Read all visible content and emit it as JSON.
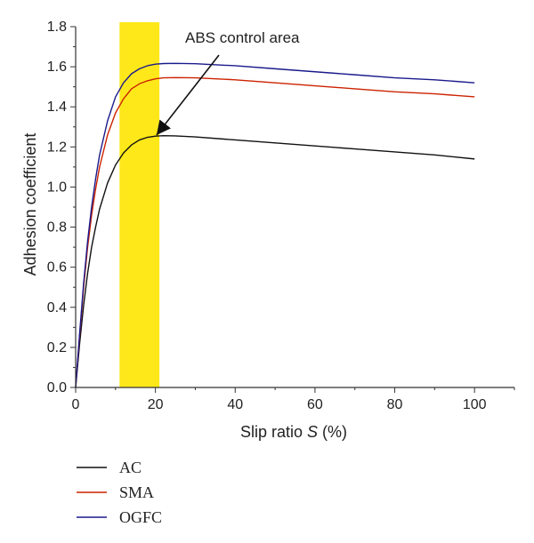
{
  "chart_data": {
    "type": "line",
    "xlabel_prefix": "Slip ratio ",
    "xlabel_var": "S",
    "xlabel_suffix": " (%)",
    "ylabel": "Adhesion coefficient",
    "xlim": [
      0,
      110
    ],
    "ylim": [
      0,
      1.8
    ],
    "xticks": [
      0,
      20,
      40,
      60,
      80,
      100
    ],
    "yticks": [
      0.0,
      0.2,
      0.4,
      0.6,
      0.8,
      1.0,
      1.2,
      1.4,
      1.6,
      1.8
    ],
    "ytick_labels": [
      "0.0",
      "0.2",
      "0.4",
      "0.6",
      "0.8",
      "1.0",
      "1.2",
      "1.4",
      "1.6",
      "1.8"
    ],
    "grid": false,
    "legend_placement": "bottom-left, below plot",
    "shaded_region": {
      "x_start": 11,
      "x_end": 21,
      "color": "#FFE81A"
    },
    "annotation": {
      "text": "ABS control area",
      "points_to": {
        "x": 20.5,
        "y": 1.25
      }
    },
    "series": [
      {
        "name": "AC",
        "color": "#111111",
        "x": [
          0,
          1,
          2,
          3,
          4,
          5,
          6,
          8,
          10,
          12,
          14,
          16,
          18,
          20,
          22,
          25,
          30,
          40,
          50,
          60,
          70,
          80,
          90,
          100
        ],
        "y": [
          0,
          0.22,
          0.41,
          0.57,
          0.7,
          0.8,
          0.89,
          1.02,
          1.11,
          1.17,
          1.21,
          1.235,
          1.248,
          1.254,
          1.256,
          1.255,
          1.25,
          1.235,
          1.22,
          1.205,
          1.19,
          1.175,
          1.16,
          1.14
        ]
      },
      {
        "name": "SMA",
        "color": "#CC2200",
        "x": [
          0,
          1,
          2,
          3,
          4,
          5,
          6,
          8,
          10,
          12,
          14,
          16,
          18,
          20,
          22,
          25,
          30,
          40,
          50,
          60,
          70,
          80,
          90,
          100
        ],
        "y": [
          0,
          0.26,
          0.5,
          0.7,
          0.86,
          0.99,
          1.1,
          1.26,
          1.37,
          1.44,
          1.49,
          1.515,
          1.53,
          1.54,
          1.545,
          1.546,
          1.545,
          1.535,
          1.52,
          1.505,
          1.49,
          1.475,
          1.465,
          1.45
        ]
      },
      {
        "name": "OGFC",
        "color": "#1A1A8C",
        "x": [
          0,
          1,
          2,
          3,
          4,
          5,
          6,
          8,
          10,
          12,
          14,
          16,
          18,
          20,
          22,
          25,
          30,
          40,
          50,
          60,
          70,
          80,
          90,
          100
        ],
        "y": [
          0,
          0.27,
          0.52,
          0.73,
          0.9,
          1.04,
          1.16,
          1.33,
          1.45,
          1.52,
          1.565,
          1.59,
          1.605,
          1.613,
          1.616,
          1.617,
          1.615,
          1.605,
          1.59,
          1.575,
          1.56,
          1.545,
          1.535,
          1.52
        ]
      }
    ]
  }
}
